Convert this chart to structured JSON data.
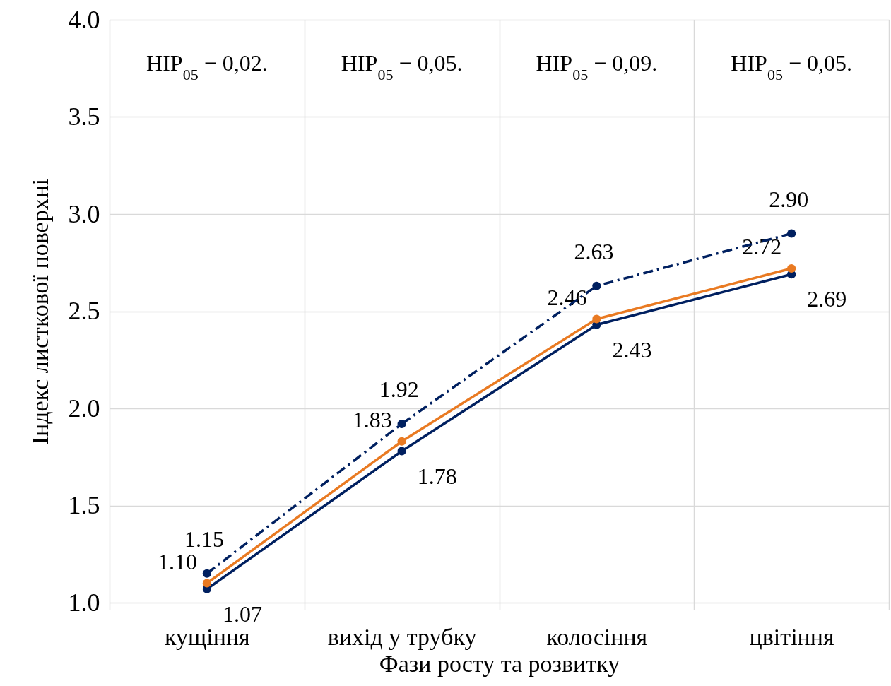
{
  "chart_data": {
    "type": "line",
    "xlabel": "Фази росту та розвитку",
    "ylabel": "Індекс листкової поверхні",
    "categories": [
      "кущіння",
      "вихід у трубку",
      "колосіння",
      "цвітіння"
    ],
    "series": [
      {
        "color": "#002060",
        "line_style": "solid",
        "values": [
          1.07,
          1.78,
          2.43,
          2.69
        ],
        "value_labels": [
          "1.07",
          "1.78",
          "2.43",
          "2.69"
        ]
      },
      {
        "color": "#e97a22",
        "line_style": "solid",
        "values": [
          1.1,
          1.83,
          2.46,
          2.72
        ],
        "value_labels": [
          "1.10",
          "1.83",
          "2.46",
          "2.72"
        ]
      },
      {
        "color": "#002060",
        "line_style": "dashed",
        "values": [
          1.15,
          1.92,
          2.63,
          2.9
        ],
        "value_labels": [
          "1.15",
          "1.92",
          "2.63",
          "2.90"
        ]
      }
    ],
    "marker": "circle",
    "ylim": [
      1.0,
      4.0
    ],
    "yticks": [
      {
        "value": 1,
        "label": "1.0"
      },
      1.5,
      {
        "value": 2,
        "label": "2.0"
      },
      2.5,
      {
        "value": 3,
        "label": "3.0"
      },
      3.5,
      {
        "value": 4,
        "label": "4.0"
      }
    ],
    "grid": true,
    "annotations": [
      "HIP$_{05}$ − 0,02.",
      "HIP$_{05}$ − 0,05.",
      "HIP$_{05}$ − 0,09.",
      "HIP$_{05}$ − 0,05."
    ]
  }
}
